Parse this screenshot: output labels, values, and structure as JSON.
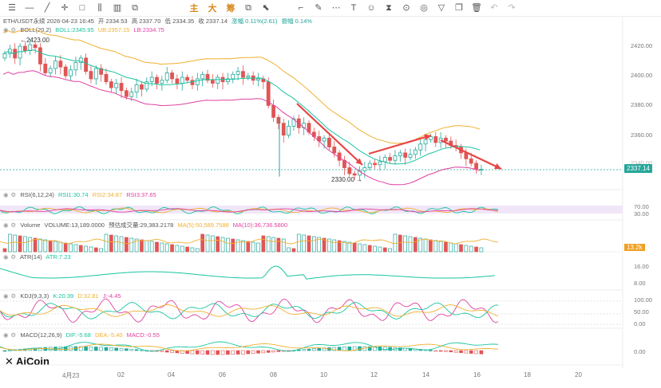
{
  "toolbar": {
    "icons": [
      "menu-icon",
      "minus-icon",
      "line-icon",
      "crosshair-icon",
      "square-icon",
      "kline-icon",
      "chart-type-icon",
      "indicator-icon"
    ],
    "cn_labels": [
      "主",
      "大",
      "筹"
    ],
    "right_icons": [
      "layout-icon",
      "pointer-icon",
      "pen-icon",
      "brush-icon",
      "fib-icon",
      "text-icon",
      "note-icon",
      "ruler-icon",
      "magnet-icon",
      "lock-icon",
      "filter-icon",
      "copy-icon",
      "delete-icon",
      "undo-icon",
      "redo-icon"
    ]
  },
  "header": {
    "title": "ETH/USDT永续 2026-04-23 16:45",
    "open": "开 2334.53",
    "high": "高 2337.70",
    "low": "低 2334.35",
    "close": "收 2337.14",
    "change": "涨幅 0.11%(2.61)",
    "amplitude": "振幅 0.14%"
  },
  "boll": {
    "name": "BOLL(20,2)",
    "mb": "BOLL:2345.95",
    "up": "UB:2357.15",
    "dn": "LB:2334.75"
  },
  "price_axis": [
    "2420.00",
    "2400.00",
    "2380.00",
    "2360.00",
    "2340.00"
  ],
  "current_price": "2337.14",
  "high_label": "2423.00",
  "low_label": "2330.00",
  "rsi": {
    "name": "RSI(6,12,24)",
    "r1": "RSI1:30.74",
    "r2": "RSI2:34.87",
    "r3": "RSI3:37.65",
    "axis": [
      "70.00",
      "30.00"
    ]
  },
  "volume": {
    "name": "Volume",
    "vol": "VOLUME:13,189.0000",
    "pred": "预估成交量:29,383.2178",
    "ma5": "MA(5):50,589.7588",
    "ma10": "MA(10):36,736.5800",
    "tag": "13.2k"
  },
  "atr": {
    "name": "ATR(14)",
    "val": "ATR:7.23",
    "axis": [
      "16.00",
      "8.00"
    ]
  },
  "kdj": {
    "name": "KDJ(9,3,3)",
    "k": "K:20.39",
    "d": "D:32.81",
    "j": "J:-4.45",
    "axis": [
      "100.00",
      "50.00",
      "0.00"
    ]
  },
  "macd": {
    "name": "MACD(12,26,9)",
    "dif": "DIF:-5.68",
    "dea": "DEA:-5.40",
    "macd": "MACD:-0.55",
    "axis": [
      "0.00"
    ]
  },
  "x_axis": [
    "4月23",
    "02",
    "04",
    "06",
    "08",
    "10",
    "12",
    "14",
    "16",
    "18",
    "20"
  ],
  "logo": "AiCoin",
  "colors": {
    "up": "#26a69a",
    "down": "#e05555",
    "mb": "#18c4a0",
    "ub": "#f0b030",
    "lb": "#e040a0",
    "arrow": "#e84545"
  }
}
